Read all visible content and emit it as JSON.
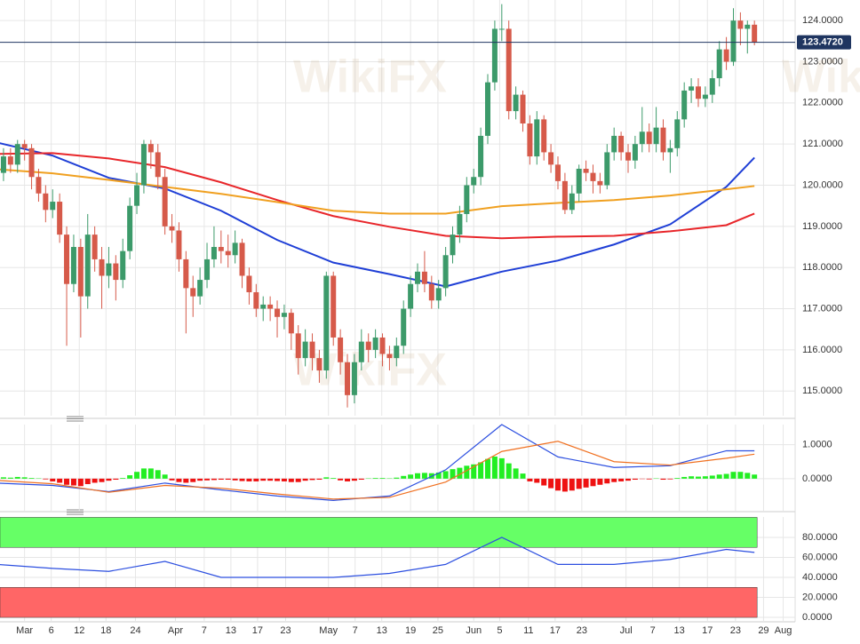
{
  "chart_data": [
    {
      "type": "candlestick",
      "watermark": "WikiFX",
      "up_color": "#3c9a6a",
      "down_color": "#d65a4a",
      "ylim": [
        114.4,
        124.5
      ],
      "yticks": [
        {
          "value": 124,
          "label": "124.0000"
        },
        {
          "value": 123,
          "label": "123.0000"
        },
        {
          "value": 122,
          "label": "122.0000"
        },
        {
          "value": 121,
          "label": "121.0000"
        },
        {
          "value": 120,
          "label": "120.0000"
        },
        {
          "value": 119,
          "label": "119.0000"
        },
        {
          "value": 118,
          "label": "118.0000"
        },
        {
          "value": 117,
          "label": "117.0000"
        },
        {
          "value": 116,
          "label": "116.0000"
        },
        {
          "value": 115,
          "label": "115.0000"
        }
      ],
      "last_price": {
        "value": 123.472,
        "label": "123.4720"
      },
      "candles": [
        [
          120.1,
          120.6,
          119.9,
          120.3
        ],
        [
          120.3,
          120.9,
          120.1,
          120.7
        ],
        [
          120.7,
          120.9,
          120.3,
          120.5
        ],
        [
          120.5,
          121.1,
          120.3,
          121.0
        ],
        [
          121.0,
          121.1,
          120.6,
          120.9
        ],
        [
          120.9,
          121.0,
          119.9,
          120.2
        ],
        [
          120.2,
          120.4,
          119.6,
          119.8
        ],
        [
          119.8,
          120.0,
          119.1,
          119.4
        ],
        [
          119.4,
          119.9,
          119.2,
          119.6
        ],
        [
          119.6,
          119.8,
          118.6,
          118.8
        ],
        [
          118.8,
          119.0,
          116.1,
          117.6
        ],
        [
          117.6,
          118.8,
          117.4,
          118.5
        ],
        [
          118.5,
          118.7,
          116.3,
          117.3
        ],
        [
          117.3,
          119.3,
          117.0,
          118.8
        ],
        [
          118.8,
          119.0,
          117.9,
          118.2
        ],
        [
          118.2,
          118.5,
          117.0,
          117.8
        ],
        [
          117.8,
          118.5,
          117.5,
          118.1
        ],
        [
          118.1,
          118.3,
          117.2,
          117.7
        ],
        [
          117.7,
          118.7,
          117.5,
          118.4
        ],
        [
          118.4,
          119.7,
          118.2,
          119.5
        ],
        [
          119.5,
          120.3,
          119.3,
          120.0
        ],
        [
          120.0,
          121.1,
          119.8,
          121.0
        ],
        [
          121.0,
          121.1,
          120.4,
          120.8
        ],
        [
          120.8,
          121.0,
          119.9,
          120.2
        ],
        [
          120.2,
          120.4,
          118.8,
          119.0
        ],
        [
          119.0,
          119.3,
          118.6,
          118.9
        ],
        [
          118.9,
          119.1,
          117.9,
          118.2
        ],
        [
          118.2,
          118.4,
          116.4,
          117.5
        ],
        [
          117.5,
          117.8,
          116.8,
          117.3
        ],
        [
          117.3,
          118.0,
          117.1,
          117.7
        ],
        [
          117.7,
          118.6,
          117.5,
          118.2
        ],
        [
          118.2,
          119.0,
          118.0,
          118.5
        ],
        [
          118.5,
          118.9,
          118.1,
          118.4
        ],
        [
          118.4,
          118.8,
          118.0,
          118.3
        ],
        [
          118.3,
          118.9,
          118.1,
          118.6
        ],
        [
          118.6,
          118.7,
          117.5,
          117.8
        ],
        [
          117.8,
          118.0,
          117.1,
          117.4
        ],
        [
          117.4,
          117.6,
          116.8,
          117.0
        ],
        [
          117.0,
          117.3,
          116.7,
          117.1
        ],
        [
          117.1,
          117.3,
          116.7,
          117.0
        ],
        [
          117.0,
          117.2,
          116.3,
          116.8
        ],
        [
          116.8,
          117.1,
          116.5,
          116.9
        ],
        [
          116.9,
          117.0,
          116.0,
          116.4
        ],
        [
          116.4,
          116.6,
          115.4,
          115.8
        ],
        [
          115.8,
          116.5,
          115.6,
          116.2
        ],
        [
          116.2,
          116.4,
          115.5,
          115.8
        ],
        [
          115.8,
          116.0,
          115.2,
          115.5
        ],
        [
          115.5,
          117.9,
          115.3,
          117.8
        ],
        [
          117.8,
          117.9,
          116.1,
          116.3
        ],
        [
          116.3,
          116.5,
          115.4,
          115.7
        ],
        [
          115.7,
          115.9,
          114.6,
          114.9
        ],
        [
          114.9,
          115.9,
          114.7,
          115.7
        ],
        [
          115.7,
          116.5,
          115.5,
          116.2
        ],
        [
          116.2,
          116.4,
          115.7,
          116.0
        ],
        [
          116.0,
          116.5,
          115.8,
          116.3
        ],
        [
          116.3,
          116.4,
          115.6,
          115.9
        ],
        [
          115.9,
          116.1,
          115.5,
          115.8
        ],
        [
          115.8,
          116.3,
          115.6,
          116.1
        ],
        [
          116.1,
          117.2,
          115.9,
          117.0
        ],
        [
          117.0,
          117.8,
          116.8,
          117.6
        ],
        [
          117.6,
          118.1,
          117.4,
          117.9
        ],
        [
          117.9,
          118.4,
          117.4,
          117.6
        ],
        [
          117.6,
          117.8,
          117.0,
          117.2
        ],
        [
          117.2,
          117.7,
          117.0,
          117.5
        ],
        [
          117.5,
          118.5,
          117.3,
          118.3
        ],
        [
          118.3,
          119.0,
          118.1,
          118.8
        ],
        [
          118.8,
          119.5,
          118.6,
          119.3
        ],
        [
          119.3,
          120.2,
          119.1,
          120.0
        ],
        [
          120.0,
          120.4,
          119.8,
          120.2
        ],
        [
          120.2,
          121.4,
          120.0,
          121.2
        ],
        [
          121.2,
          122.7,
          121.0,
          122.5
        ],
        [
          122.5,
          124.0,
          122.3,
          123.8
        ],
        [
          123.8,
          124.4,
          123.5,
          123.8
        ],
        [
          123.8,
          124.0,
          121.6,
          121.8
        ],
        [
          121.8,
          122.4,
          121.6,
          122.2
        ],
        [
          122.2,
          122.3,
          121.3,
          121.5
        ],
        [
          121.5,
          121.7,
          120.5,
          120.7
        ],
        [
          120.7,
          121.8,
          120.5,
          121.6
        ],
        [
          121.6,
          121.7,
          120.6,
          120.8
        ],
        [
          120.8,
          121.0,
          120.3,
          120.5
        ],
        [
          120.5,
          120.7,
          119.9,
          120.1
        ],
        [
          120.1,
          120.3,
          119.3,
          119.4
        ],
        [
          119.4,
          120.0,
          119.3,
          119.8
        ],
        [
          119.8,
          120.5,
          119.6,
          120.4
        ],
        [
          120.4,
          120.6,
          120.1,
          120.3
        ],
        [
          120.3,
          120.5,
          119.8,
          120.1
        ],
        [
          120.1,
          120.3,
          119.8,
          120.0
        ],
        [
          120.0,
          121.0,
          119.9,
          120.8
        ],
        [
          120.8,
          121.4,
          120.6,
          121.2
        ],
        [
          121.2,
          121.3,
          120.6,
          120.8
        ],
        [
          120.8,
          121.0,
          120.3,
          120.6
        ],
        [
          120.6,
          121.2,
          120.4,
          121.0
        ],
        [
          121.0,
          121.9,
          120.8,
          121.3
        ],
        [
          121.3,
          121.5,
          120.8,
          121.0
        ],
        [
          121.0,
          121.9,
          120.8,
          121.4
        ],
        [
          121.4,
          121.6,
          120.6,
          120.8
        ],
        [
          120.8,
          121.1,
          120.3,
          120.9
        ],
        [
          120.9,
          121.8,
          120.7,
          121.6
        ],
        [
          121.6,
          122.5,
          121.4,
          122.3
        ],
        [
          122.3,
          122.6,
          122.0,
          122.4
        ],
        [
          122.4,
          122.6,
          121.9,
          122.1
        ],
        [
          122.1,
          122.4,
          121.9,
          122.2
        ],
        [
          122.2,
          122.8,
          122.0,
          122.6
        ],
        [
          122.6,
          123.5,
          122.4,
          123.3
        ],
        [
          123.3,
          123.6,
          122.8,
          123.0
        ],
        [
          123.0,
          124.3,
          122.9,
          124.0
        ],
        [
          124.0,
          124.2,
          123.4,
          123.8
        ],
        [
          123.8,
          124.0,
          123.2,
          123.9
        ],
        [
          123.9,
          124.0,
          123.4,
          123.47
        ]
      ],
      "x": [
        0,
        8,
        16,
        24,
        32,
        40,
        48,
        56,
        64,
        72,
        80,
        88,
        96,
        104,
        108
      ],
      "series": [
        {
          "color": "#1f3fd6",
          "values": [
            121.04,
            120.72,
            120.18,
            119.92,
            119.38,
            118.67,
            118.12,
            117.84,
            117.54,
            117.9,
            118.17,
            118.56,
            119.05,
            119.96,
            120.67
          ]
        },
        {
          "color": "#e8262a",
          "values": [
            120.76,
            120.78,
            120.65,
            120.44,
            120.07,
            119.64,
            119.25,
            118.99,
            118.77,
            118.71,
            118.75,
            118.77,
            118.88,
            119.03,
            119.31
          ]
        },
        {
          "color": "#f0a020",
          "values": [
            120.39,
            120.29,
            120.13,
            119.96,
            119.79,
            119.59,
            119.38,
            119.31,
            119.31,
            119.49,
            119.57,
            119.64,
            119.75,
            119.9,
            119.98
          ]
        }
      ]
    },
    {
      "type": "macd",
      "up_color": "#22ee22",
      "down_color": "#ee1111",
      "ylim": [
        -0.97,
        1.59
      ],
      "yticks": [
        {
          "value": 1,
          "label": "1.0000"
        },
        {
          "value": 0,
          "label": "0.0000"
        }
      ],
      "histogram": [
        0.03,
        0.04,
        0.03,
        0.05,
        0.04,
        0.02,
        0.01,
        -0.02,
        -0.08,
        -0.12,
        -0.18,
        -0.2,
        -0.22,
        -0.16,
        -0.12,
        -0.1,
        -0.06,
        -0.03,
        0.02,
        0.1,
        0.2,
        0.3,
        0.3,
        0.25,
        0.12,
        -0.05,
        -0.1,
        -0.12,
        -0.1,
        -0.06,
        -0.05,
        -0.04,
        -0.03,
        -0.03,
        -0.05,
        -0.07,
        -0.08,
        -0.08,
        -0.06,
        -0.06,
        -0.07,
        -0.08,
        -0.1,
        -0.1,
        -0.06,
        -0.04,
        -0.03,
        0.04,
        0.02,
        -0.05,
        -0.08,
        -0.06,
        -0.03,
        0.01,
        0.02,
        0.02,
        0.01,
        0.03,
        0.08,
        0.12,
        0.16,
        0.17,
        0.16,
        0.18,
        0.22,
        0.28,
        0.32,
        0.38,
        0.42,
        0.48,
        0.58,
        0.65,
        0.6,
        0.45,
        0.3,
        0.15,
        -0.08,
        -0.12,
        -0.2,
        -0.28,
        -0.35,
        -0.38,
        -0.35,
        -0.3,
        -0.26,
        -0.22,
        -0.18,
        -0.14,
        -0.1,
        -0.08,
        -0.06,
        -0.03,
        -0.01,
        -0.02,
        0.01,
        -0.03,
        -0.02,
        0.02,
        0.05,
        0.07,
        0.06,
        0.07,
        0.09,
        0.12,
        0.14,
        0.2,
        0.2,
        0.17,
        0.12
      ],
      "x": [
        0,
        8,
        16,
        24,
        32,
        40,
        48,
        56,
        64,
        72,
        80,
        88,
        96,
        104,
        108
      ],
      "series": [
        {
          "color": "#2c4fe0",
          "values": [
            -0.13,
            -0.2,
            -0.38,
            -0.13,
            -0.33,
            -0.51,
            -0.64,
            -0.51,
            0.26,
            1.59,
            0.64,
            0.33,
            0.38,
            0.82,
            0.82
          ]
        },
        {
          "color": "#f07020",
          "values": [
            -0.05,
            -0.15,
            -0.4,
            -0.2,
            -0.28,
            -0.45,
            -0.6,
            -0.55,
            -0.1,
            0.8,
            1.1,
            0.5,
            0.4,
            0.6,
            0.72
          ]
        }
      ]
    },
    {
      "type": "line",
      "ylim": [
        -4.4,
        100.4
      ],
      "yticks": [
        {
          "value": 80,
          "label": "80.0000"
        },
        {
          "value": 60,
          "label": "60.0000"
        },
        {
          "value": 40,
          "label": "40.0000"
        },
        {
          "value": 20,
          "label": "20.0000"
        },
        {
          "value": 0,
          "label": "0.0000"
        }
      ],
      "zones": [
        {
          "from": 70,
          "to": 100,
          "color": "#66ff66"
        },
        {
          "from": 0,
          "to": 30,
          "color": "#ff6666"
        }
      ],
      "x": [
        0,
        8,
        16,
        24,
        32,
        40,
        48,
        56,
        64,
        72,
        80,
        88,
        96,
        104,
        108
      ],
      "series": [
        {
          "color": "#2c4fe0",
          "values": [
            53,
            49,
            46,
            56,
            40,
            40,
            40,
            44,
            53,
            80,
            53,
            53,
            58,
            68,
            65
          ]
        }
      ],
      "xlim": [
        0.5,
        113.8
      ],
      "xticks": [
        {
          "value": 4,
          "label": "Mar"
        },
        {
          "value": 7.8,
          "label": "6"
        },
        {
          "value": 11.8,
          "label": "12"
        },
        {
          "value": 15.6,
          "label": "18"
        },
        {
          "value": 19.8,
          "label": "24"
        },
        {
          "value": 25.5,
          "label": "Apr"
        },
        {
          "value": 29.6,
          "label": "7"
        },
        {
          "value": 33.4,
          "label": "13"
        },
        {
          "value": 37.2,
          "label": "17"
        },
        {
          "value": 41.2,
          "label": "23"
        },
        {
          "value": 47.3,
          "label": "May"
        },
        {
          "value": 51.1,
          "label": "7"
        },
        {
          "value": 54.9,
          "label": "13"
        },
        {
          "value": 59,
          "label": "19"
        },
        {
          "value": 62.9,
          "label": "25"
        },
        {
          "value": 68,
          "label": "Jun"
        },
        {
          "value": 71.7,
          "label": "5"
        },
        {
          "value": 75.8,
          "label": "11"
        },
        {
          "value": 79.6,
          "label": "17"
        },
        {
          "value": 83.4,
          "label": "23"
        },
        {
          "value": 89.7,
          "label": "Jul"
        },
        {
          "value": 93.5,
          "label": "7"
        },
        {
          "value": 97.3,
          "label": "13"
        },
        {
          "value": 101.3,
          "label": "17"
        },
        {
          "value": 105.3,
          "label": "23"
        },
        {
          "value": 109.3,
          "label": "29"
        },
        {
          "value": 112.1,
          "label": "Aug"
        }
      ]
    }
  ]
}
